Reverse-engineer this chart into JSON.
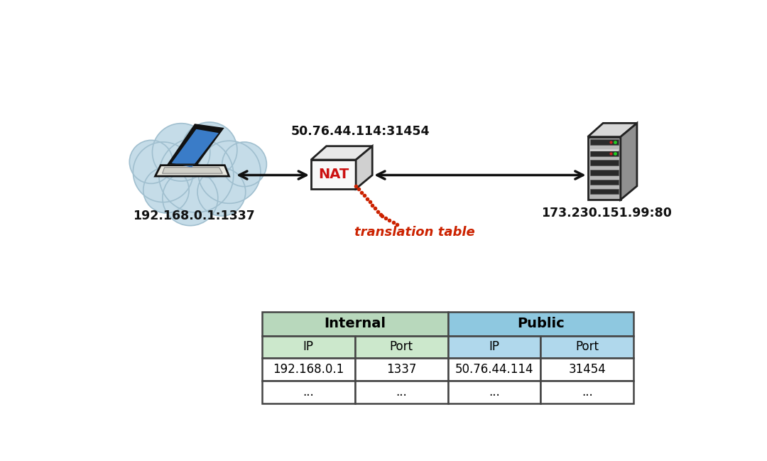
{
  "bg_color": "#ffffff",
  "cloud_color": "#c5dce8",
  "cloud_edge_color": "#a0bfcf",
  "nat_front_color": "#f8f8f8",
  "nat_top_color": "#e8e8e8",
  "nat_right_color": "#d0d0d0",
  "nat_edge_color": "#222222",
  "nat_text_color": "#cc1111",
  "arrow_color": "#111111",
  "server_front_color": "#b8b8b8",
  "server_top_color": "#d8d8d8",
  "server_right_color": "#909090",
  "server_edge_color": "#222222",
  "server_slot_color": "#333333",
  "label_laptop": "192.168.0.1:1337",
  "label_nat_top": "50.76.44.114:31454",
  "label_server": "173.230.151.99:80",
  "label_translation": "translation table",
  "translation_color": "#cc2200",
  "table_header_internal_color": "#b8d8bc",
  "table_header_public_color": "#8ec8e0",
  "table_subheader_internal_color": "#cce8cc",
  "table_subheader_public_color": "#b0d8ec",
  "table_row_color": "#ffffff",
  "table_border_color": "#444444",
  "table_subheaders": [
    "IP",
    "Port",
    "IP",
    "Port"
  ],
  "table_row1": [
    "192.168.0.1",
    "1337",
    "50.76.44.114",
    "31454"
  ],
  "table_row2": [
    "...",
    "...",
    "...",
    "..."
  ]
}
